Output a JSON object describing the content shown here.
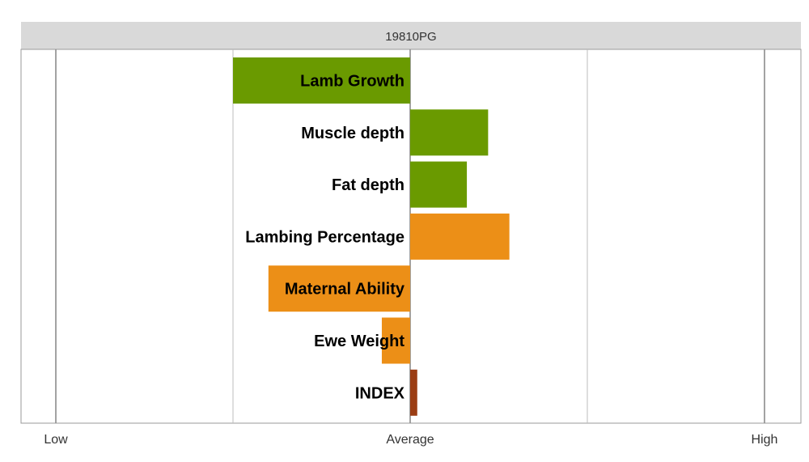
{
  "chart_data": {
    "type": "bar",
    "orientation": "horizontal",
    "title": "19810PG",
    "categories": [
      "Lamb Growth",
      "Muscle depth",
      "Fat depth",
      "Lambing Percentage",
      "Maternal Ability",
      "Ewe Weight",
      "INDEX"
    ],
    "values": [
      -1.0,
      0.44,
      0.32,
      0.56,
      -0.8,
      -0.16,
      0.04
    ],
    "colors": [
      "#6a9a00",
      "#6a9a00",
      "#6a9a00",
      "#ec8f17",
      "#ec8f17",
      "#ec8f17",
      "#9b3d14"
    ],
    "xlim": [
      -2,
      2
    ],
    "x_ticks": [
      {
        "value": -2,
        "label": "Low"
      },
      {
        "value": 0,
        "label": "Average"
      },
      {
        "value": 2,
        "label": "High"
      }
    ],
    "minor_gridlines": [
      -1,
      1
    ],
    "grid": true,
    "legend": "none"
  }
}
